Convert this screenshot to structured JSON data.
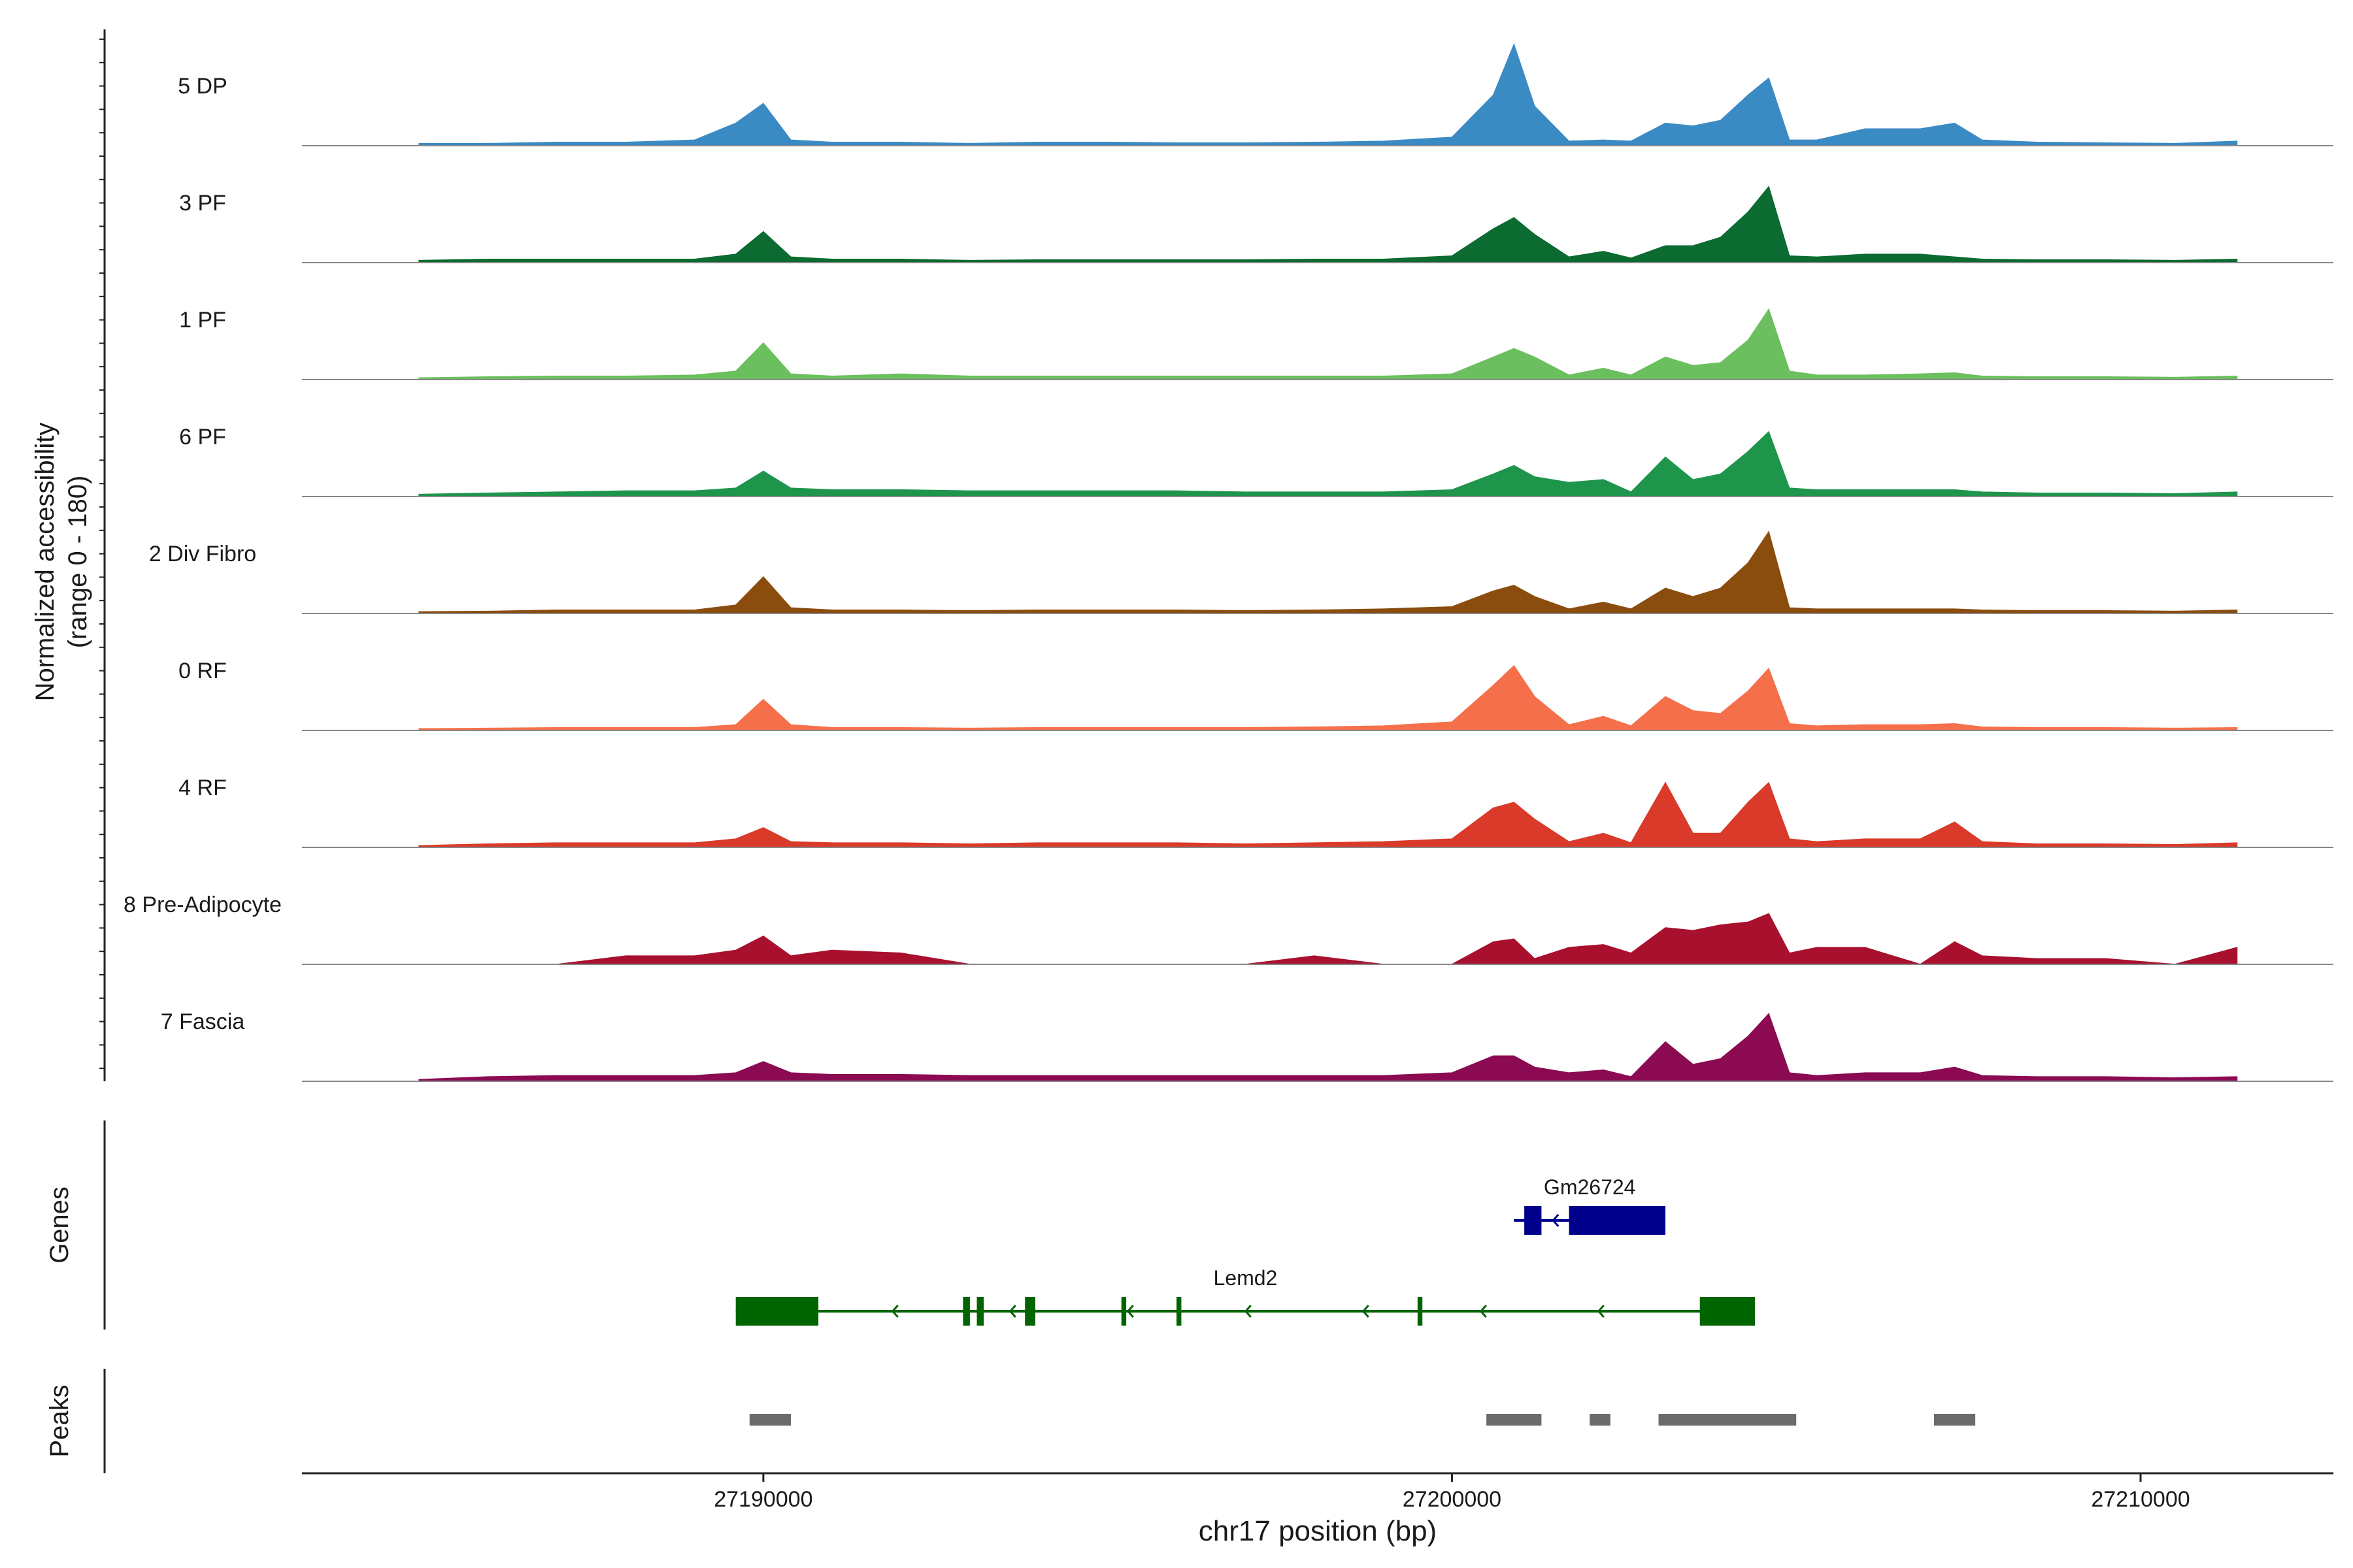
{
  "chart_data": {
    "type": "area",
    "region": "chr17",
    "x_start": 27183300,
    "x_end": 27212800,
    "y_range": [
      0,
      180
    ],
    "ylabel_line1": "Normalized accessibility",
    "ylabel_line2": "(range 0 - 180)",
    "xlabel": "chr17 position (bp)",
    "x_ticks": [
      {
        "value": 27190000,
        "label": "27190000"
      },
      {
        "value": 27200000,
        "label": "27200000"
      },
      {
        "value": 27210000,
        "label": "27210000"
      }
    ],
    "sample_x": [
      27185000,
      27186000,
      27187000,
      27188000,
      27189000,
      27189600,
      27190000,
      27190400,
      27191000,
      27192000,
      27193000,
      27194000,
      27195000,
      27196000,
      27197000,
      27198000,
      27199000,
      27200000,
      27200600,
      27200900,
      27201200,
      27201700,
      27202200,
      27202600,
      27203100,
      27203500,
      27203900,
      27204300,
      27204600,
      27204900,
      27205300,
      27206000,
      27206800,
      27207300,
      27207700,
      27208500,
      27209500,
      27210500,
      27211400
    ],
    "series": [
      {
        "name": "5 DP",
        "color": "#3a8ac4",
        "values": [
          4,
          4,
          6,
          6,
          10,
          40,
          75,
          10,
          6,
          6,
          4,
          6,
          6,
          5,
          5,
          6,
          8,
          15,
          90,
          180,
          70,
          8,
          10,
          8,
          40,
          35,
          45,
          90,
          120,
          10,
          10,
          30,
          30,
          40,
          10,
          6,
          5,
          4,
          8
        ]
      },
      {
        "name": "3 PF",
        "color": "#0b6b30",
        "values": [
          4,
          6,
          6,
          6,
          6,
          15,
          55,
          10,
          6,
          6,
          4,
          5,
          5,
          5,
          5,
          6,
          6,
          12,
          60,
          80,
          50,
          10,
          20,
          8,
          30,
          30,
          45,
          90,
          135,
          12,
          10,
          15,
          15,
          10,
          6,
          5,
          5,
          4,
          6
        ]
      },
      {
        "name": "1 PF",
        "color": "#6bbf5e",
        "values": [
          3,
          5,
          6,
          6,
          8,
          15,
          65,
          10,
          6,
          10,
          6,
          6,
          6,
          6,
          6,
          6,
          6,
          10,
          40,
          55,
          40,
          8,
          20,
          8,
          40,
          25,
          30,
          70,
          125,
          15,
          8,
          8,
          10,
          12,
          6,
          5,
          5,
          4,
          6
        ]
      },
      {
        "name": "6 PF",
        "color": "#1f954c",
        "values": [
          4,
          6,
          8,
          10,
          10,
          15,
          45,
          15,
          12,
          12,
          10,
          10,
          10,
          10,
          8,
          8,
          8,
          12,
          40,
          55,
          35,
          25,
          30,
          8,
          70,
          30,
          40,
          80,
          115,
          15,
          12,
          12,
          12,
          12,
          8,
          6,
          6,
          5,
          8
        ]
      },
      {
        "name": "2 Div Fibro",
        "color": "#8b4d0e",
        "values": [
          3,
          4,
          6,
          6,
          6,
          15,
          65,
          10,
          6,
          6,
          5,
          6,
          6,
          6,
          5,
          6,
          8,
          12,
          40,
          50,
          30,
          8,
          20,
          8,
          45,
          30,
          45,
          90,
          145,
          10,
          8,
          8,
          8,
          8,
          6,
          5,
          5,
          4,
          6
        ]
      },
      {
        "name": "0 RF",
        "color": "#f5704a",
        "values": [
          3,
          4,
          5,
          5,
          5,
          10,
          55,
          10,
          5,
          5,
          4,
          5,
          5,
          5,
          5,
          6,
          8,
          15,
          80,
          115,
          60,
          10,
          25,
          8,
          60,
          35,
          30,
          70,
          110,
          12,
          8,
          10,
          10,
          12,
          6,
          5,
          5,
          4,
          5
        ]
      },
      {
        "name": "4 RF",
        "color": "#d93a2a",
        "values": [
          3,
          6,
          8,
          8,
          8,
          15,
          35,
          10,
          8,
          8,
          6,
          8,
          8,
          8,
          6,
          8,
          10,
          15,
          70,
          80,
          50,
          10,
          25,
          8,
          115,
          25,
          25,
          80,
          115,
          15,
          10,
          15,
          15,
          45,
          10,
          6,
          6,
          5,
          8
        ]
      },
      {
        "name": "8 Pre-Adipocyte",
        "color": "#a8102e",
        "values": [
          0,
          0,
          0,
          15,
          15,
          25,
          50,
          15,
          25,
          20,
          0,
          0,
          0,
          0,
          0,
          15,
          0,
          0,
          40,
          45,
          10,
          30,
          35,
          20,
          65,
          60,
          70,
          75,
          90,
          20,
          30,
          30,
          0,
          40,
          15,
          10,
          10,
          0,
          30
        ]
      },
      {
        "name": "7 Fascia",
        "color": "#8b0a52",
        "values": [
          3,
          8,
          10,
          10,
          10,
          15,
          35,
          15,
          12,
          12,
          10,
          10,
          10,
          10,
          10,
          10,
          10,
          15,
          45,
          45,
          25,
          15,
          20,
          8,
          70,
          30,
          40,
          80,
          120,
          15,
          10,
          15,
          15,
          25,
          10,
          8,
          8,
          6,
          8
        ]
      }
    ],
    "genes_label": "Genes",
    "genes": [
      {
        "name": "Gm26724",
        "strand": "-",
        "color": "#00008b",
        "start": 27200900,
        "end": 27203100,
        "exons": [
          [
            27201050,
            27201300
          ],
          [
            27201700,
            27203100
          ]
        ]
      },
      {
        "name": "Lemd2",
        "strand": "-",
        "color": "#006400",
        "start": 27189600,
        "end": 27204400,
        "exons": [
          [
            27189600,
            27190800
          ],
          [
            27192900,
            27193000
          ],
          [
            27193100,
            27193200
          ],
          [
            27193800,
            27193950
          ],
          [
            27195200,
            27195270
          ],
          [
            27196000,
            27196070
          ],
          [
            27199500,
            27199570
          ],
          [
            27203600,
            27204400
          ]
        ]
      }
    ],
    "peaks_label": "Peaks",
    "peaks": [
      [
        27189800,
        27190400
      ],
      [
        27200500,
        27201300
      ],
      [
        27202000,
        27202300
      ],
      [
        27203000,
        27205000
      ],
      [
        27207000,
        27207600
      ]
    ]
  }
}
